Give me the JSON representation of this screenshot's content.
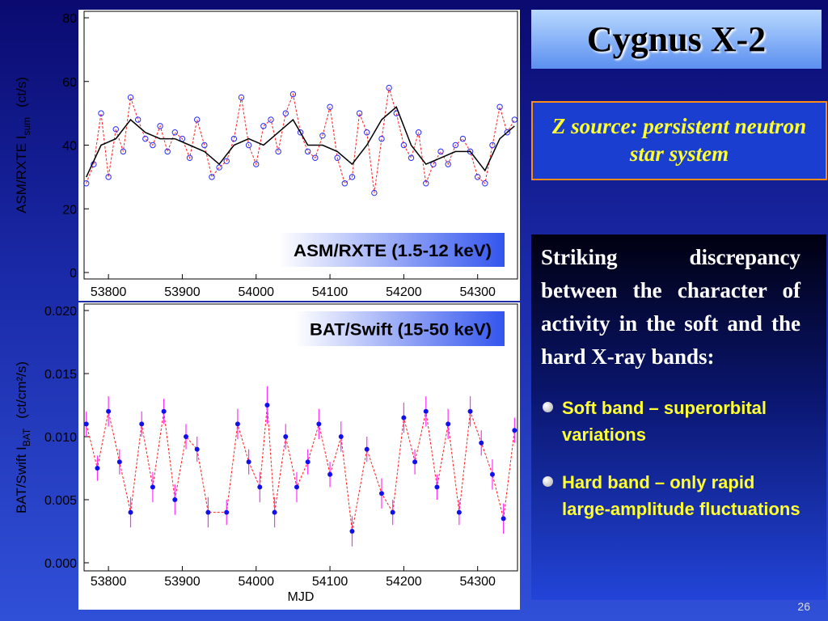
{
  "chart_data": [
    {
      "type": "scatter",
      "ylabel": "ASM/RXTE  I",
      "ylabel_sub": "sum",
      "ylabel_unit": "(ct/s)",
      "annotation": "ASM/RXTE (1.5-12 keV)",
      "xlim": [
        53767,
        54354
      ],
      "xticks": [
        53800,
        53900,
        54000,
        54100,
        54200,
        54300
      ],
      "ylim": [
        0,
        80
      ],
      "yticks": [
        0,
        20,
        40,
        60,
        80
      ],
      "series": [
        {
          "color": "#2a2aff",
          "line_color": "#ff2020",
          "marker": true,
          "x": [
            53770,
            53780,
            53790,
            53800,
            53810,
            53820,
            53830,
            53840,
            53850,
            53860,
            53870,
            53880,
            53890,
            53900,
            53910,
            53920,
            53930,
            53940,
            53950,
            53960,
            53970,
            53980,
            53990,
            54000,
            54010,
            54020,
            54030,
            54040,
            54050,
            54060,
            54070,
            54080,
            54090,
            54100,
            54110,
            54120,
            54130,
            54140,
            54150,
            54160,
            54170,
            54180,
            54190,
            54200,
            54210,
            54220,
            54230,
            54240,
            54250,
            54260,
            54270,
            54280,
            54290,
            54300,
            54310,
            54320,
            54330,
            54340,
            54350
          ],
          "values": [
            28,
            34,
            50,
            30,
            45,
            38,
            55,
            48,
            42,
            40,
            46,
            38,
            44,
            42,
            36,
            48,
            40,
            30,
            33,
            35,
            42,
            55,
            40,
            34,
            46,
            48,
            38,
            50,
            56,
            44,
            38,
            36,
            43,
            52,
            36,
            28,
            30,
            50,
            44,
            25,
            42,
            58,
            50,
            40,
            36,
            44,
            28,
            34,
            38,
            34,
            40,
            42,
            38,
            30,
            28,
            40,
            52,
            44,
            48
          ]
        },
        {
          "color": "#000000",
          "marker": false,
          "x": [
            53770,
            53790,
            53810,
            53830,
            53850,
            53870,
            53890,
            53910,
            53930,
            53950,
            53970,
            53990,
            54010,
            54030,
            54050,
            54070,
            54090,
            54110,
            54130,
            54150,
            54170,
            54190,
            54210,
            54230,
            54250,
            54270,
            54290,
            54310,
            54330,
            54350
          ],
          "values": [
            30,
            40,
            42,
            48,
            44,
            42,
            42,
            40,
            38,
            34,
            40,
            42,
            40,
            44,
            48,
            40,
            40,
            38,
            34,
            40,
            48,
            52,
            40,
            34,
            36,
            38,
            38,
            32,
            42,
            46
          ]
        }
      ]
    },
    {
      "type": "scatter",
      "ylabel": "BAT/Swift  I",
      "ylabel_sub": "BAT",
      "ylabel_unit": "(ct/cm²/s)",
      "xlabel": "MJD",
      "annotation": "BAT/Swift (15-50 keV)",
      "xlim": [
        53767,
        54354
      ],
      "xticks": [
        53800,
        53900,
        54000,
        54100,
        54200,
        54300
      ],
      "ylim": [
        0,
        0.02
      ],
      "yticks": [
        {
          "value": 0,
          "label": "0.000"
        },
        0.005,
        {
          "value": 0.01,
          "label": "0.010"
        },
        0.015,
        {
          "value": 0.02,
          "label": "0.020"
        }
      ],
      "series": [
        {
          "color": "#1010ee",
          "line_color": "#ff2020",
          "error_color": "#ff30ff",
          "marker": true,
          "x": [
            53770,
            53785,
            53800,
            53815,
            53830,
            53845,
            53860,
            53875,
            53890,
            53905,
            53920,
            53935,
            53960,
            53975,
            53990,
            54005,
            54015,
            54025,
            54040,
            54055,
            54070,
            54085,
            54100,
            54115,
            54130,
            54150,
            54170,
            54185,
            54200,
            54215,
            54230,
            54245,
            54260,
            54275,
            54290,
            54305,
            54320,
            54335,
            54350
          ],
          "values": [
            0.011,
            0.0075,
            0.012,
            0.008,
            0.004,
            0.011,
            0.006,
            0.012,
            0.005,
            0.01,
            0.009,
            0.004,
            0.004,
            0.011,
            0.008,
            0.006,
            0.0125,
            0.004,
            0.01,
            0.006,
            0.008,
            0.011,
            0.007,
            0.01,
            0.0025,
            0.009,
            0.0055,
            0.004,
            0.0115,
            0.008,
            0.012,
            0.006,
            0.011,
            0.004,
            0.012,
            0.0095,
            0.007,
            0.0035,
            0.0105
          ],
          "errors": [
            0.001,
            0.001,
            0.0012,
            0.001,
            0.0012,
            0.001,
            0.0012,
            0.001,
            0.0012,
            0.001,
            0.001,
            0.0012,
            0.001,
            0.0012,
            0.001,
            0.0012,
            0.0015,
            0.0012,
            0.001,
            0.0012,
            0.001,
            0.0012,
            0.001,
            0.0012,
            0.0012,
            0.001,
            0.0012,
            0.001,
            0.0012,
            0.001,
            0.0012,
            0.001,
            0.0012,
            0.001,
            0.0012,
            0.001,
            0.0012,
            0.0012,
            0.001
          ]
        }
      ]
    }
  ],
  "slide": {
    "title": "Cygnus X-2",
    "subtitle": "Z source: persistent neutron star system",
    "paragraph": "Striking discrepancy between the character of activity in the soft and the hard X-ray bands:",
    "bullets": [
      "Soft band – superorbital variations",
      "Hard band  –  only rapid large-amplitude fluctuations"
    ],
    "page_number": 26
  }
}
